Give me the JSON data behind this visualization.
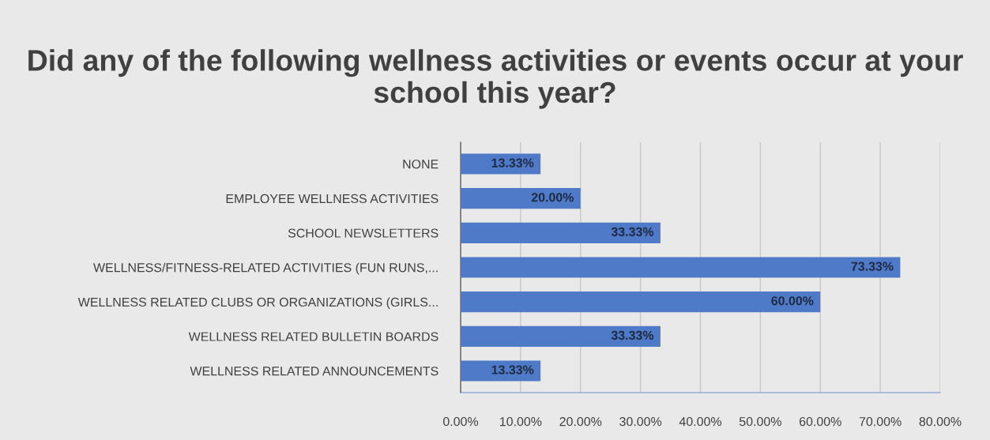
{
  "chart_data": {
    "type": "bar",
    "orientation": "horizontal",
    "title": "Did any of the following wellness activities or events occur at your school this year?",
    "categories": [
      "NONE",
      "EMPLOYEE WELLNESS ACTIVITIES",
      "SCHOOL NEWSLETTERS",
      "WELLNESS/FITNESS-RELATED ACTIVITIES (FUN RUNS,...",
      "WELLNESS RELATED CLUBS OR ORGANIZATIONS (GIRLS...",
      "WELLNESS RELATED BULLETIN BOARDS",
      "WELLNESS RELATED ANNOUNCEMENTS"
    ],
    "values": [
      13.33,
      20.0,
      33.33,
      73.33,
      60.0,
      33.33,
      13.33
    ],
    "value_labels": [
      "13.33%",
      "20.00%",
      "33.33%",
      "73.33%",
      "60.00%",
      "33.33%",
      "13.33%"
    ],
    "color": "#4f7ac7",
    "xlim": [
      0,
      80
    ],
    "xticks": [
      {
        "value": 0,
        "label": "0.00%"
      },
      {
        "value": 10,
        "label": "10.00%"
      },
      {
        "value": 20,
        "label": "20.00%"
      },
      {
        "value": 30,
        "label": "30.00%"
      },
      {
        "value": 40,
        "label": "40.00%"
      },
      {
        "value": 50,
        "label": "50.00%"
      },
      {
        "value": 60,
        "label": "60.00%"
      },
      {
        "value": 70,
        "label": "70.00%"
      },
      {
        "value": 80,
        "label": "80.00%"
      }
    ],
    "grid": "x",
    "legend": false
  }
}
